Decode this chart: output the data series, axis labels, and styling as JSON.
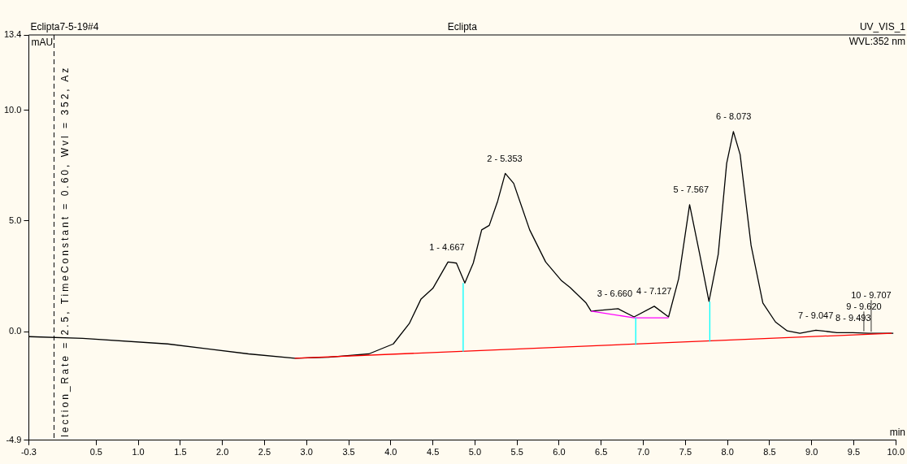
{
  "chart_data": {
    "type": "line",
    "title": "Eclipta",
    "subtitle": "Eclipta7-5-19#4",
    "xlabel": "min",
    "ylabel": "mAU",
    "xlim": [
      -0.3,
      10
    ],
    "xticks": [
      -0.3,
      0.5,
      {
        "value": 1,
        "label": "1.0"
      },
      1.5,
      {
        "value": 2,
        "label": "2.0"
      },
      2.5,
      {
        "value": 3,
        "label": "3.0"
      },
      3.5,
      {
        "value": 4,
        "label": "4.0"
      },
      4.5,
      {
        "value": 5,
        "label": "5.0"
      },
      5.5,
      {
        "value": 6,
        "label": "6.0"
      },
      6.5,
      {
        "value": 7,
        "label": "7.0"
      },
      7.5,
      {
        "value": 8,
        "label": "8.0"
      },
      8.5,
      {
        "value": 9,
        "label": "9.0"
      },
      9.5,
      {
        "value": 10,
        "label": "10.0"
      }
    ],
    "ylim": [
      -4.9,
      13.4
    ],
    "yticks": [
      -4.9,
      {
        "value": 0,
        "label": "0.0"
      },
      {
        "value": 5,
        "label": "5.0"
      },
      {
        "value": 10,
        "label": "10.0"
      },
      13.4
    ],
    "grid": false,
    "legend": false,
    "marker": "none",
    "line_style": "solid",
    "series": [
      {
        "color": "#000000",
        "x": [
          -0.3,
          0.34,
          1.35,
          2.31,
          2.86,
          3.26,
          3.74,
          4.03,
          4.22,
          4.36,
          4.5,
          4.68,
          4.78,
          4.88,
          4.98,
          5.08,
          5.17,
          5.27,
          5.36,
          5.46,
          5.65,
          5.84,
          6.03,
          6.13,
          6.32,
          6.38,
          6.7,
          6.89,
          7.13,
          7.3,
          7.42,
          7.55,
          7.67,
          7.78,
          7.89,
          7.99,
          8.07,
          8.15,
          8.28,
          8.42,
          8.57,
          8.71,
          8.86,
          9.05,
          9.3,
          9.49,
          9.68,
          9.97
        ],
        "values": [
          -0.22,
          -0.3,
          -0.55,
          -1.0,
          -1.2,
          -1.15,
          -1.0,
          -0.55,
          0.37,
          1.48,
          1.96,
          3.15,
          3.1,
          2.2,
          3.1,
          4.6,
          4.8,
          5.9,
          7.15,
          6.7,
          4.6,
          3.15,
          2.3,
          2.0,
          1.3,
          0.93,
          1.04,
          0.67,
          1.15,
          0.67,
          2.4,
          5.74,
          3.5,
          1.37,
          3.5,
          7.6,
          9.04,
          8.0,
          3.9,
          1.3,
          0.44,
          0.04,
          -0.07,
          0.07,
          -0.04,
          -0.04,
          -0.07,
          -0.07
        ]
      },
      {
        "color": "#ff0000",
        "x": [
          2.86,
          9.95
        ],
        "values": [
          -1.2,
          -0.07
        ]
      },
      {
        "color": "#ff00ff",
        "x": [
          6.38,
          6.89,
          7.3
        ],
        "values": [
          0.93,
          0.63,
          0.63
        ]
      },
      {
        "color": "#00ffff",
        "x": [
          4.86,
          4.86
        ],
        "values": [
          -0.9,
          2.2
        ]
      },
      {
        "color": "#00ffff",
        "x": [
          6.91,
          6.91
        ],
        "values": [
          -0.6,
          0.63
        ]
      },
      {
        "color": "#00ffff",
        "x": [
          7.79,
          7.79
        ],
        "values": [
          -0.45,
          1.37
        ]
      }
    ],
    "ref_lines": [
      {
        "axis": "x",
        "value": 0,
        "color": "#000000",
        "line_style": "dashed"
      }
    ],
    "annotations": [
      "lection_Rate = 2.5, TimeConstant = 0.60, Wvl = 352, Az",
      "UV_VIS_1",
      "WVL:352 nm",
      {
        "text": "1 - 4.667",
        "x": 4.667,
        "y": 3.15
      },
      {
        "text": "2 - 5.353",
        "x": 5.353,
        "y": 7.15
      },
      {
        "text": "3 - 6.660",
        "x": 6.66,
        "y": 1.04
      },
      {
        "text": "4 - 7.127",
        "x": 7.127,
        "y": 1.15
      },
      {
        "text": "5 - 7.567",
        "x": 7.567,
        "y": 5.74
      },
      {
        "text": "6 - 8.073",
        "x": 8.073,
        "y": 9.04
      },
      {
        "text": "7 - 9.047",
        "x": 9.047,
        "y": 0.07
      },
      {
        "text": "8 - 9.493",
        "x": 9.493,
        "y": -0.04
      },
      {
        "text": "9 - 9.620",
        "x": 9.62,
        "y": -0.05
      },
      {
        "text": "10 - 9.707",
        "x": 9.707,
        "y": -0.07
      }
    ]
  }
}
